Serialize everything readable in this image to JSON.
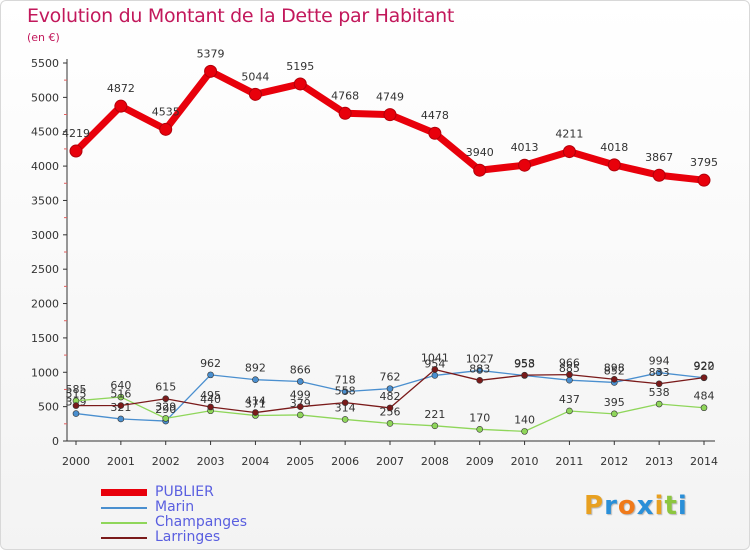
{
  "header": {
    "title": "Evolution du Montant de la Dette par Habitant",
    "subtitle": "(en €)"
  },
  "logo": {
    "text": "Proxiti",
    "letters": [
      "P",
      "r",
      "o",
      "x",
      "i",
      "t",
      "i"
    ],
    "colors": [
      "#e8a020",
      "#2a8fd8",
      "#f07a1a",
      "#2a8fd8",
      "#e8a020",
      "#8cc63f",
      "#2a8fd8"
    ]
  },
  "chart_data": {
    "type": "line",
    "title": "Evolution du Montant de la Dette par Habitant",
    "subtitle": "(en €)",
    "xlabel": "",
    "ylabel": "",
    "x": [
      "2000",
      "2001",
      "2002",
      "2003",
      "2004",
      "2005",
      "2006",
      "2007",
      "2008",
      "2009",
      "2010",
      "2011",
      "2012",
      "2013",
      "2014"
    ],
    "ylim": [
      0,
      5500
    ],
    "yticks": [
      0,
      500,
      1000,
      1500,
      2000,
      2500,
      3000,
      3500,
      4000,
      4500,
      5000,
      5500
    ],
    "grid": false,
    "legend_position": "bottom-left",
    "series": [
      {
        "name": "PUBLIER",
        "color": "#e8000b",
        "values": [
          4219,
          4872,
          4535,
          5379,
          5044,
          5195,
          4768,
          4749,
          4478,
          3940,
          4013,
          4211,
          4018,
          3867,
          3795
        ]
      },
      {
        "name": "Marin",
        "color": "#4a8fcf",
        "values": [
          399,
          321,
          290,
          962,
          892,
          866,
          718,
          762,
          954,
          1027,
          953,
          885,
          852,
          994,
          920
        ]
      },
      {
        "name": "Champanges",
        "color": "#8fd65a",
        "values": [
          585,
          640,
          329,
          440,
          371,
          379,
          314,
          256,
          221,
          170,
          140,
          437,
          395,
          538,
          484
        ]
      },
      {
        "name": "Larringes",
        "color": "#7a1a1a",
        "values": [
          515,
          516,
          615,
          495,
          414,
          499,
          558,
          482,
          1041,
          883,
          958,
          966,
          898,
          833,
          922
        ]
      }
    ]
  }
}
